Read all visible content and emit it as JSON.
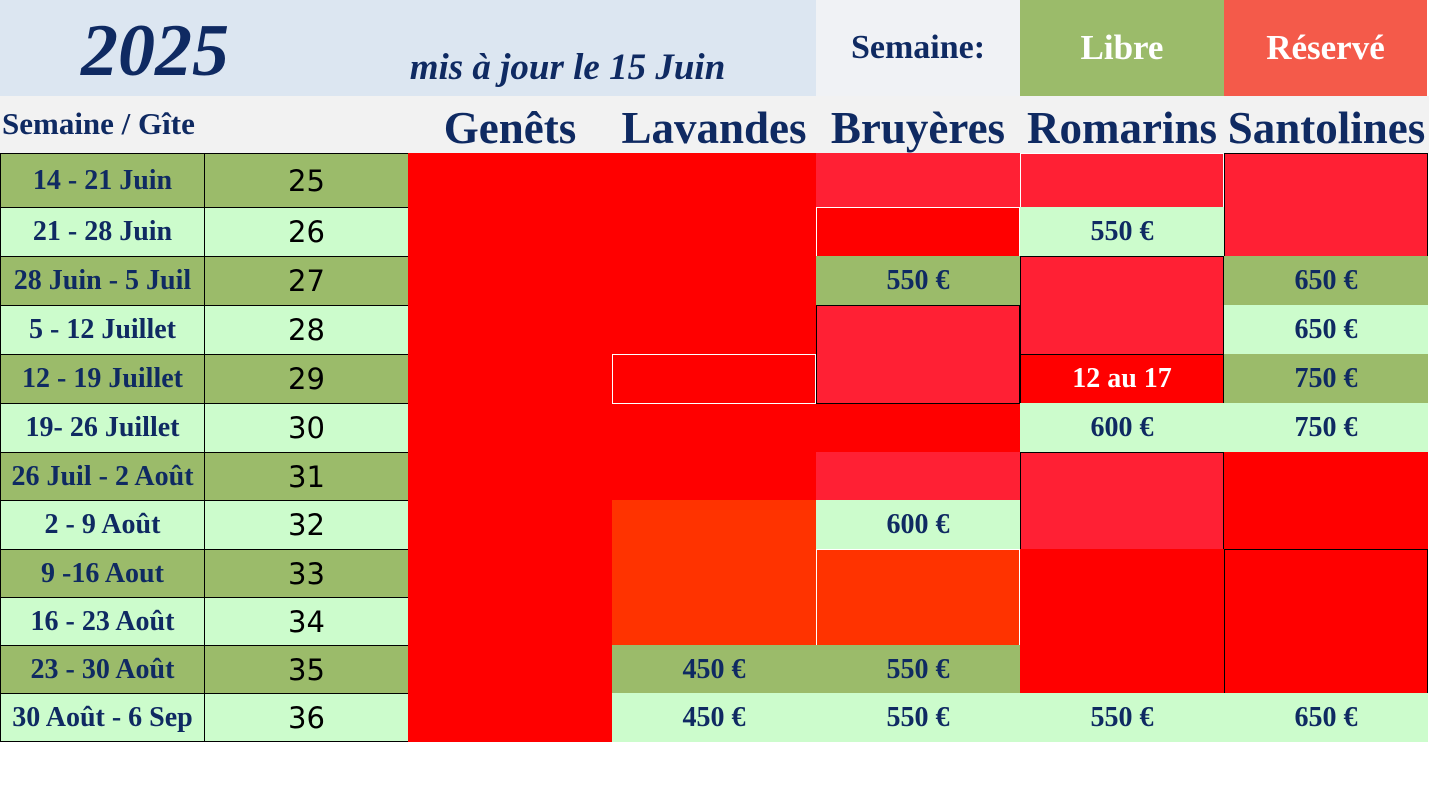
{
  "header": {
    "year": "2025",
    "updated": "mis à jour le 15 Juin",
    "legend_label": "Semaine:",
    "legend_free": "Libre",
    "legend_reserved": "Réservé",
    "corner_label": "Semaine / Gîte"
  },
  "gites": [
    "Genêts",
    "Lavandes",
    "Bruyères",
    "Romarins",
    "Santolines"
  ],
  "weeks": [
    {
      "label": "14 - 21 Juin",
      "num": "25"
    },
    {
      "label": "21 - 28 Juin",
      "num": "26"
    },
    {
      "label": "28 Juin - 5 Juil",
      "num": "27"
    },
    {
      "label": "5 - 12 Juillet",
      "num": "28"
    },
    {
      "label": "12 - 19 Juillet",
      "num": "29"
    },
    {
      "label": "19- 26 Juillet",
      "num": "30"
    },
    {
      "label": "26 Juil - 2 Août",
      "num": "31"
    },
    {
      "label": "2 - 9 Août",
      "num": "32"
    },
    {
      "label": "9 -16 Aout",
      "num": "33"
    },
    {
      "label": "16 - 23 Août",
      "num": "34"
    },
    {
      "label": "23 - 30 Août",
      "num": "35"
    },
    {
      "label": "30 Août - 6 Sep",
      "num": "36"
    }
  ],
  "prices": {
    "bruyeres_27": "550 €",
    "bruyeres_32": "600 €",
    "bruyeres_35": "550 €",
    "bruyeres_36": "550 €",
    "lavandes_35": "450 €",
    "lavandes_36": "450 €",
    "romarins_26": "550 €",
    "romarins_29": "12 au 17",
    "romarins_30": "600 €",
    "romarins_36": "550 €",
    "santolines_27": "650 €",
    "santolines_28": "650 €",
    "santolines_29": "750 €",
    "santolines_30": "750 €",
    "santolines_36": "650 €"
  },
  "colors": {
    "free_dark": "#9bbb6a",
    "free_light": "#ccfccc",
    "reserved": "#ff0000",
    "reserved_alt": "#ff2034",
    "reserved_orange": "#ff3300",
    "legend_reserved": "#f45a4a",
    "text": "#0f2a62"
  }
}
